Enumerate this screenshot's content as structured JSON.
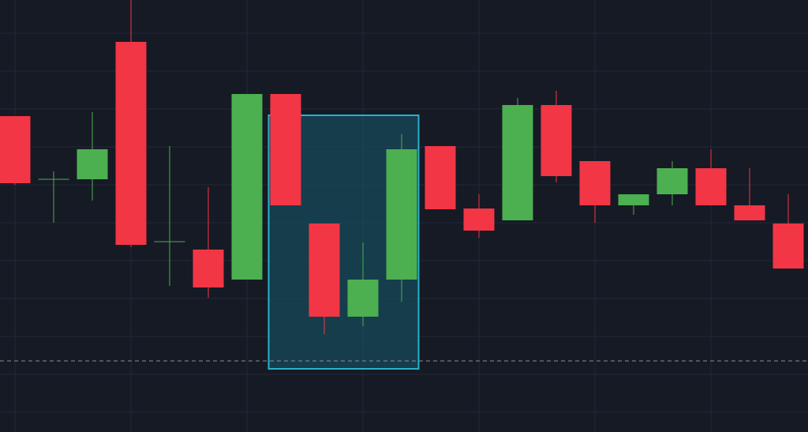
{
  "chart_data": {
    "type": "candlestick",
    "title": "",
    "xlabel": "",
    "ylabel": "",
    "grid": true,
    "ylim": [
      0,
      547
    ],
    "colors": {
      "background": "#161a25",
      "grid": "#232838",
      "up": "#4caf50",
      "down": "#f23645",
      "highlight_fill": "#174a5a",
      "highlight_stroke": "#27b3cc",
      "reference_line": "#8a8e99"
    },
    "candles": [
      {
        "open": 400,
        "high": 400,
        "low": 313,
        "close": 315
      },
      {
        "open": 320,
        "high": 330,
        "low": 265,
        "close": 320
      },
      {
        "open": 320,
        "high": 405,
        "low": 293,
        "close": 358
      },
      {
        "open": 494,
        "high": 547,
        "low": 234,
        "close": 237
      },
      {
        "open": 241,
        "high": 362,
        "low": 185,
        "close": 241
      },
      {
        "open": 231,
        "high": 310,
        "low": 170,
        "close": 183
      },
      {
        "open": 193,
        "high": 428,
        "low": 193,
        "close": 428
      },
      {
        "open": 428,
        "high": 428,
        "low": 287,
        "close": 287
      },
      {
        "open": 264,
        "high": 264,
        "low": 124,
        "close": 146
      },
      {
        "open": 146,
        "high": 240,
        "low": 134,
        "close": 193
      },
      {
        "open": 193,
        "high": 377,
        "low": 165,
        "close": 358
      },
      {
        "open": 362,
        "high": 362,
        "low": 282,
        "close": 282
      },
      {
        "open": 283,
        "high": 301,
        "low": 246,
        "close": 255
      },
      {
        "open": 268,
        "high": 423,
        "low": 268,
        "close": 414
      },
      {
        "open": 414,
        "high": 432,
        "low": 316,
        "close": 324
      },
      {
        "open": 343,
        "high": 343,
        "low": 265,
        "close": 287
      },
      {
        "open": 287,
        "high": 301,
        "low": 275,
        "close": 301
      },
      {
        "open": 301,
        "high": 343,
        "low": 287,
        "close": 334
      },
      {
        "open": 334,
        "high": 358,
        "low": 287,
        "close": 287
      },
      {
        "open": 287,
        "high": 334,
        "low": 268,
        "close": 268
      },
      {
        "open": 264,
        "high": 301,
        "low": 207,
        "close": 207
      }
    ],
    "highlight": {
      "from_candle": 7,
      "to_candle": 10,
      "top": 401,
      "bottom": 80
    },
    "reference_line": 90
  }
}
